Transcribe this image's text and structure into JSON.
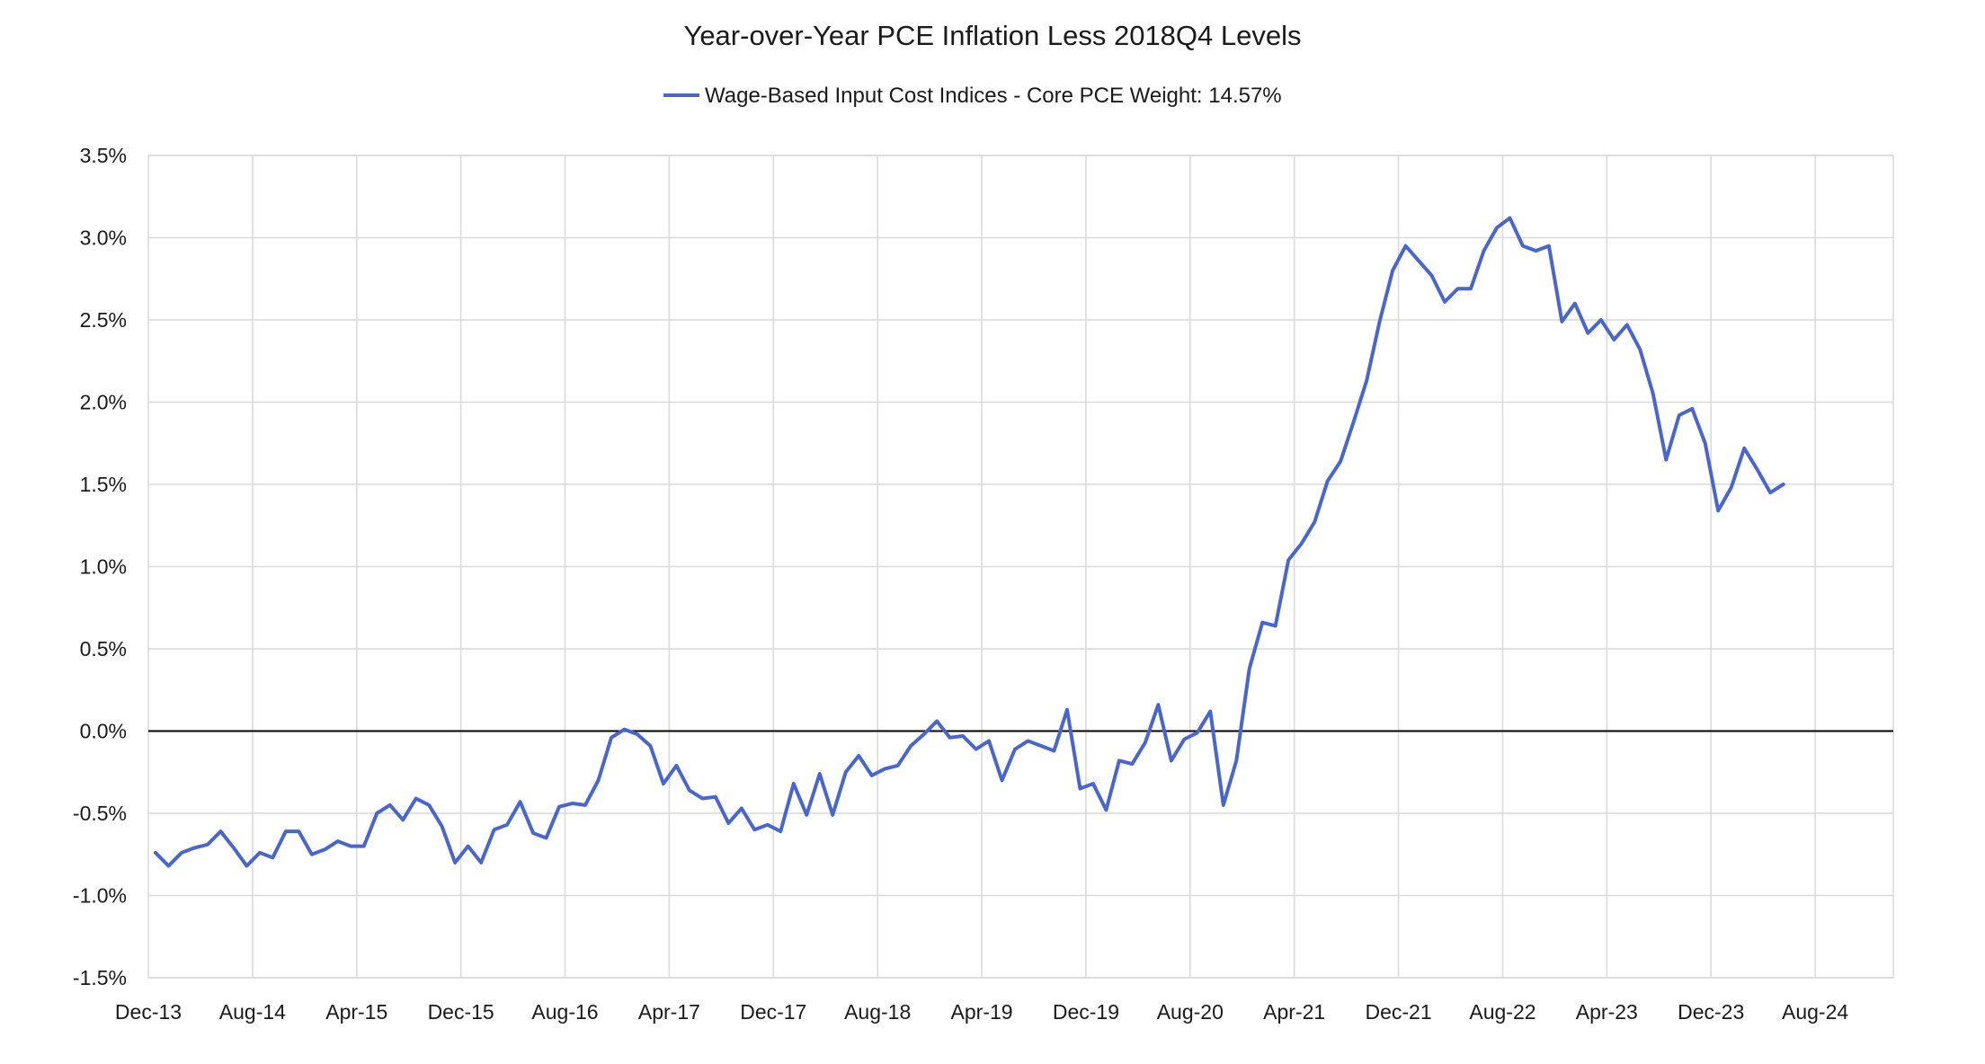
{
  "chart_data": {
    "type": "line",
    "title": "Year-over-Year PCE Inflation Less 2018Q4 Levels",
    "xlabel": "",
    "ylabel": "",
    "ylim": [
      -1.5,
      3.5
    ],
    "y_ticks": [
      -1.5,
      -1.0,
      -0.5,
      0.0,
      0.5,
      1.0,
      1.5,
      2.0,
      2.5,
      3.0,
      3.5
    ],
    "y_tick_labels": [
      "-1.5%",
      "-1.0%",
      "-0.5%",
      "0.0%",
      "0.5%",
      "1.0%",
      "1.5%",
      "2.0%",
      "2.5%",
      "3.0%",
      "3.5%"
    ],
    "x_start": "Dec-13",
    "x_ticks": [
      "Dec-13",
      "Aug-14",
      "Apr-15",
      "Dec-15",
      "Aug-16",
      "Apr-17",
      "Dec-17",
      "Aug-18",
      "Apr-19",
      "Dec-19",
      "Aug-20",
      "Apr-21",
      "Dec-21",
      "Aug-22",
      "Apr-23",
      "Dec-23",
      "Aug-24"
    ],
    "grid": true,
    "legend_position": "top",
    "series": [
      {
        "name": "Wage-Based Input Cost Indices - Core PCE Weight: 14.57%",
        "color": "#4a66cc",
        "values": [
          -0.74,
          -0.82,
          -0.74,
          -0.71,
          -0.69,
          -0.61,
          -0.71,
          -0.82,
          -0.74,
          -0.77,
          -0.61,
          -0.61,
          -0.75,
          -0.72,
          -0.67,
          -0.7,
          -0.7,
          -0.5,
          -0.45,
          -0.54,
          -0.41,
          -0.45,
          -0.58,
          -0.8,
          -0.7,
          -0.8,
          -0.6,
          -0.57,
          -0.43,
          -0.62,
          -0.65,
          -0.46,
          -0.44,
          -0.45,
          -0.3,
          -0.04,
          0.01,
          -0.02,
          -0.09,
          -0.32,
          -0.21,
          -0.36,
          -0.41,
          -0.4,
          -0.56,
          -0.47,
          -0.6,
          -0.57,
          -0.61,
          -0.32,
          -0.51,
          -0.26,
          -0.51,
          -0.25,
          -0.15,
          -0.27,
          -0.23,
          -0.21,
          -0.09,
          -0.02,
          0.06,
          -0.04,
          -0.03,
          -0.11,
          -0.06,
          -0.3,
          -0.11,
          -0.06,
          -0.09,
          -0.12,
          0.13,
          -0.35,
          -0.32,
          -0.48,
          -0.18,
          -0.2,
          -0.07,
          0.16,
          -0.18,
          -0.05,
          -0.01,
          0.12,
          -0.45,
          -0.18,
          0.38,
          0.66,
          0.64,
          1.04,
          1.14,
          1.27,
          1.52,
          1.64,
          1.88,
          2.13,
          2.49,
          2.8,
          2.95,
          2.86,
          2.77,
          2.61,
          2.69,
          2.69,
          2.92,
          3.06,
          3.12,
          2.95,
          2.92,
          2.95,
          2.49,
          2.6,
          2.42,
          2.5,
          2.38,
          2.47,
          2.32,
          2.05,
          1.65,
          1.92,
          1.96,
          1.75,
          1.34,
          1.48,
          1.72,
          1.59,
          1.45,
          1.5
        ]
      }
    ]
  }
}
